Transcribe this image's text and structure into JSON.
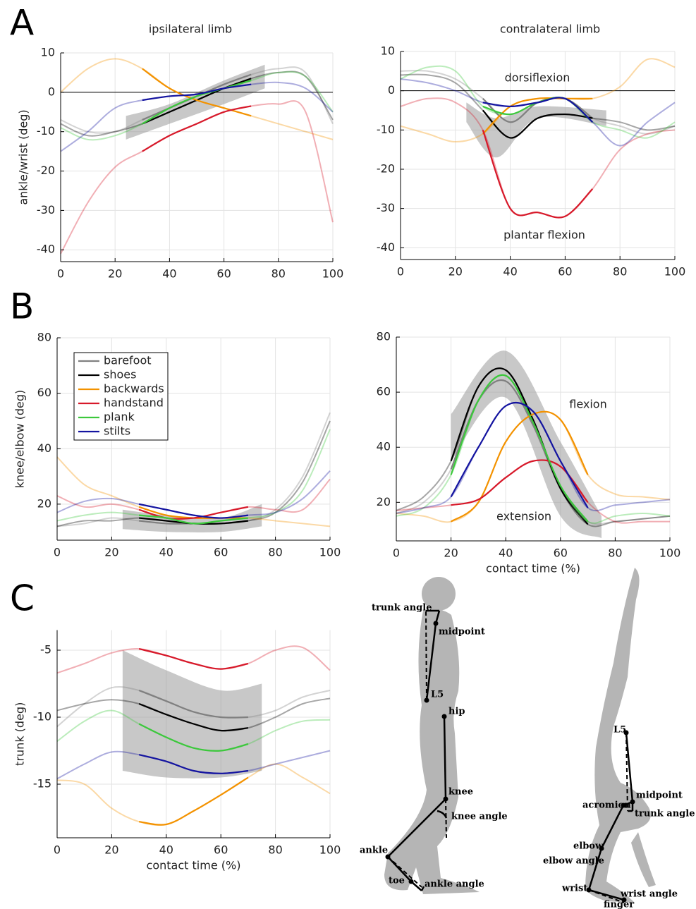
{
  "panels": [
    "A",
    "B",
    "C"
  ],
  "chart_data": [
    {
      "type": "line",
      "title": "ipsilateral limb",
      "ylabel": "ankle/wrist (deg)",
      "x": [
        0,
        10,
        20,
        30,
        40,
        50,
        60,
        70,
        80,
        90,
        100
      ],
      "xlim": [
        0,
        100
      ],
      "xticks": [
        0,
        20,
        40,
        60,
        80,
        100
      ],
      "ylim": [
        -43,
        10
      ],
      "yticks": [
        -40,
        -30,
        -20,
        -10,
        0,
        10
      ],
      "grid": true,
      "zero_line": true,
      "band": {
        "x": [
          24,
          40,
          60,
          75
        ],
        "lower": [
          -12,
          -8,
          -3,
          1
        ],
        "upper": [
          -6,
          -3,
          3,
          7
        ]
      },
      "series": [
        {
          "name": "barefoot",
          "color": "#808080",
          "values": [
            -7,
            -10,
            -10,
            -7,
            -4,
            -1,
            2,
            4.5,
            6,
            5,
            -8
          ]
        },
        {
          "name": "shoes",
          "color": "#000000",
          "values": [
            -8,
            -11,
            -10,
            -8,
            -5,
            -2,
            1,
            3.5,
            5,
            4,
            -7
          ]
        },
        {
          "name": "backwards",
          "color": "#f39200",
          "values": [
            0,
            6,
            8.5,
            6,
            1,
            -2,
            -4,
            -6,
            -8,
            -10,
            -12
          ]
        },
        {
          "name": "handstand",
          "color": "#d7192a",
          "values": [
            -41,
            -28,
            -19,
            -15,
            -11,
            -8,
            -5,
            -3.5,
            -3,
            -5,
            -33
          ]
        },
        {
          "name": "plank",
          "color": "#3cc83c",
          "values": [
            -9,
            -12,
            -11,
            -8,
            -4,
            -1,
            1,
            3,
            5,
            4,
            -5
          ]
        },
        {
          "name": "stilts",
          "color": "#1414a0",
          "values": [
            -15,
            -10,
            -4,
            -2,
            -1,
            -0.5,
            1,
            2,
            2.5,
            1,
            -5
          ]
        }
      ]
    },
    {
      "type": "line",
      "title": "contralateral limb",
      "annotations": [
        "dorsiflexion",
        "plantar flexion"
      ],
      "x": [
        0,
        10,
        20,
        30,
        40,
        50,
        60,
        70,
        80,
        90,
        100
      ],
      "xlim": [
        0,
        100
      ],
      "xticks": [
        0,
        20,
        40,
        60,
        80,
        100
      ],
      "ylim": [
        -43,
        10
      ],
      "yticks": [
        -40,
        -30,
        -20,
        -10,
        0,
        10
      ],
      "grid": true,
      "zero_line": true,
      "band": {
        "x": [
          24,
          35,
          50,
          75
        ],
        "lower": [
          -8,
          -17,
          -7,
          -9
        ],
        "upper": [
          -3,
          -7,
          -4,
          -5
        ]
      },
      "series": [
        {
          "name": "barefoot",
          "color": "#808080",
          "values": [
            5,
            5,
            3,
            -2,
            -8,
            -3,
            -2,
            -7,
            -9,
            -11,
            -9
          ]
        },
        {
          "name": "shoes",
          "color": "#000000",
          "values": [
            4,
            4,
            2,
            -5,
            -12,
            -7,
            -6,
            -7,
            -8,
            -10,
            -9
          ]
        },
        {
          "name": "backwards",
          "color": "#f39200",
          "values": [
            -9,
            -11,
            -13,
            -11,
            -4,
            -2,
            -2,
            -2,
            1,
            8,
            6
          ]
        },
        {
          "name": "handstand",
          "color": "#d7192a",
          "values": [
            -4,
            -2,
            -3,
            -10,
            -30,
            -31,
            -32,
            -25,
            -15,
            -11,
            -10
          ]
        },
        {
          "name": "plank",
          "color": "#3cc83c",
          "values": [
            3,
            6,
            5,
            -4,
            -6,
            -3,
            -2,
            -8,
            -10,
            -12,
            -8
          ]
        },
        {
          "name": "stilts",
          "color": "#1414a0",
          "values": [
            3,
            2,
            0,
            -3,
            -4,
            -3,
            -2,
            -8,
            -14,
            -8,
            -3
          ]
        }
      ]
    },
    {
      "type": "line",
      "ylabel": "knee/elbow (deg)",
      "legend": "upper left",
      "x": [
        0,
        10,
        20,
        30,
        40,
        50,
        60,
        70,
        80,
        90,
        100
      ],
      "xlim": [
        0,
        100
      ],
      "xticks": [
        0,
        20,
        40,
        60,
        80,
        100
      ],
      "ylim": [
        7,
        80
      ],
      "yticks": [
        20,
        40,
        60,
        80
      ],
      "grid": true,
      "band": {
        "x": [
          24,
          40,
          60,
          75
        ],
        "lower": [
          11,
          10,
          10,
          12
        ],
        "upper": [
          18,
          16,
          15,
          20
        ]
      },
      "series": [
        {
          "name": "barefoot",
          "color": "#808080",
          "values": [
            12,
            13,
            15,
            14,
            13,
            13,
            13,
            14,
            18,
            30,
            53
          ]
        },
        {
          "name": "shoes",
          "color": "#000000",
          "values": [
            12,
            14,
            14,
            15,
            14,
            13,
            13,
            14,
            17,
            28,
            50
          ]
        },
        {
          "name": "backwards",
          "color": "#f39200",
          "values": [
            37,
            27,
            23,
            19,
            16,
            15,
            15,
            15,
            14,
            13,
            12
          ]
        },
        {
          "name": "handstand",
          "color": "#d7192a",
          "values": [
            23,
            19,
            20,
            18,
            15,
            15,
            17,
            19,
            18,
            18,
            29
          ]
        },
        {
          "name": "plank",
          "color": "#3cc83c",
          "values": [
            14,
            16,
            17,
            16,
            15,
            13,
            14,
            15,
            17,
            25,
            47
          ]
        },
        {
          "name": "stilts",
          "color": "#1414a0",
          "values": [
            17,
            21,
            22,
            20,
            18,
            16,
            15,
            16,
            17,
            22,
            32
          ]
        }
      ]
    },
    {
      "type": "line",
      "xlabel": "contact time (%)",
      "annotations": [
        "flexion",
        "extension"
      ],
      "x": [
        0,
        10,
        20,
        30,
        40,
        50,
        60,
        70,
        80,
        90,
        100
      ],
      "xlim": [
        0,
        100
      ],
      "xticks": [
        0,
        20,
        40,
        60,
        80,
        100
      ],
      "ylim": [
        6,
        80
      ],
      "yticks": [
        20,
        40,
        60,
        80
      ],
      "grid": true,
      "band": {
        "x": [
          20,
          40,
          60,
          75
        ],
        "lower": [
          35,
          58,
          15,
          7
        ],
        "upper": [
          52,
          75,
          42,
          15
        ]
      },
      "series": [
        {
          "name": "barefoot",
          "color": "#808080",
          "values": [
            16,
            20,
            32,
            57,
            64,
            48,
            25,
            13,
            13,
            14,
            15
          ]
        },
        {
          "name": "shoes",
          "color": "#000000",
          "values": [
            17,
            22,
            35,
            62,
            68,
            50,
            25,
            12,
            13,
            14,
            15
          ]
        },
        {
          "name": "backwards",
          "color": "#f39200",
          "values": [
            16,
            15,
            13,
            20,
            42,
            52,
            50,
            30,
            23,
            22,
            21
          ]
        },
        {
          "name": "handstand",
          "color": "#d7192a",
          "values": [
            17,
            18,
            19,
            21,
            29,
            35,
            33,
            20,
            13,
            13,
            13
          ]
        },
        {
          "name": "plank",
          "color": "#3cc83c",
          "values": [
            15,
            18,
            30,
            57,
            66,
            49,
            26,
            13,
            15,
            16,
            15
          ]
        },
        {
          "name": "stilts",
          "color": "#1414a0",
          "values": [
            16,
            18,
            22,
            40,
            55,
            53,
            35,
            18,
            19,
            20,
            21
          ]
        }
      ]
    },
    {
      "type": "line",
      "ylabel": "trunk (deg)",
      "xlabel": "contact time (%)",
      "x": [
        0,
        10,
        20,
        30,
        40,
        50,
        60,
        70,
        80,
        90,
        100
      ],
      "xlim": [
        0,
        100
      ],
      "xticks": [
        0,
        20,
        40,
        60,
        80,
        100
      ],
      "ylim": [
        -19,
        -3.5
      ],
      "yticks": [
        -5,
        -10,
        -15
      ],
      "grid": true,
      "band": {
        "x": [
          24,
          40,
          60,
          75
        ],
        "lower": [
          -14,
          -14.5,
          -14.5,
          -14
        ],
        "upper": [
          -5,
          -6.5,
          -8,
          -7.5
        ]
      },
      "series": [
        {
          "name": "barefoot",
          "color": "#808080",
          "values": [
            -10.7,
            -9,
            -7.8,
            -8,
            -8.8,
            -9.6,
            -10,
            -10,
            -9.5,
            -8.5,
            -8
          ]
        },
        {
          "name": "shoes",
          "color": "#000000",
          "values": [
            -9.5,
            -9,
            -8.7,
            -9,
            -9.8,
            -10.5,
            -11,
            -10.8,
            -10,
            -9,
            -8.6
          ]
        },
        {
          "name": "backwards",
          "color": "#f39200",
          "values": [
            -14.7,
            -15,
            -16.8,
            -17.8,
            -18,
            -17,
            -15.8,
            -14.5,
            -13.5,
            -14.5,
            -15.7
          ]
        },
        {
          "name": "handstand",
          "color": "#d7192a",
          "values": [
            -6.7,
            -6,
            -5.2,
            -4.9,
            -5.4,
            -6,
            -6.4,
            -6,
            -5,
            -4.8,
            -6.5
          ]
        },
        {
          "name": "plank",
          "color": "#3cc83c",
          "values": [
            -11.8,
            -10.3,
            -9.5,
            -10.5,
            -11.5,
            -12.3,
            -12.5,
            -12,
            -11,
            -10.3,
            -10.2
          ]
        },
        {
          "name": "stilts",
          "color": "#1414a0",
          "values": [
            -14.6,
            -13.5,
            -12.6,
            -12.8,
            -13.3,
            -14,
            -14.2,
            -14,
            -13.5,
            -13,
            -12.5
          ]
        }
      ]
    }
  ],
  "diagrams": [
    {
      "labels": [
        "trunk angle",
        "midpoint",
        "L5",
        "hip",
        "knee",
        "knee angle",
        "ankle",
        "toe",
        "ankle angle"
      ]
    },
    {
      "labels": [
        "L5",
        "midpoint",
        "acromion",
        "trunk angle",
        "elbow",
        "elbow angle",
        "wrist",
        "wrist angle",
        "finger"
      ]
    }
  ]
}
